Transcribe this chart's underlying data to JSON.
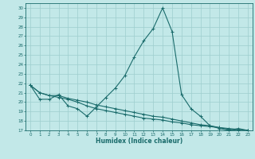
{
  "title": "",
  "xlabel": "Humidex (Indice chaleur)",
  "bg_color": "#c2e8e8",
  "line_color": "#1a6b6b",
  "grid_color": "#9ecece",
  "xlim": [
    -0.5,
    23.5
  ],
  "ylim": [
    17,
    30.5
  ],
  "xticks": [
    0,
    1,
    2,
    3,
    4,
    5,
    6,
    7,
    8,
    9,
    10,
    11,
    12,
    13,
    14,
    15,
    16,
    17,
    18,
    19,
    20,
    21,
    22,
    23
  ],
  "yticks": [
    17,
    18,
    19,
    20,
    21,
    22,
    23,
    24,
    25,
    26,
    27,
    28,
    29,
    30
  ],
  "series1_x": [
    0,
    1,
    2,
    3,
    4,
    5,
    6,
    7,
    8,
    9,
    10,
    11,
    12,
    13,
    14,
    15,
    16,
    17,
    18,
    19,
    20,
    21,
    22,
    23
  ],
  "series1_y": [
    21.8,
    20.3,
    20.3,
    20.8,
    19.6,
    19.3,
    18.5,
    19.5,
    20.5,
    21.5,
    22.8,
    24.8,
    26.5,
    27.8,
    30.0,
    27.5,
    20.8,
    19.3,
    18.5,
    17.5,
    17.2,
    17.0,
    17.2,
    17.0
  ],
  "series2_x": [
    0,
    1,
    2,
    3,
    4,
    5,
    6,
    7,
    8,
    9,
    10,
    11,
    12,
    13,
    14,
    15,
    16,
    17,
    18,
    19,
    20,
    21,
    22,
    23
  ],
  "series2_y": [
    21.8,
    21.0,
    20.7,
    20.7,
    20.4,
    20.2,
    20.0,
    19.7,
    19.5,
    19.3,
    19.1,
    18.9,
    18.7,
    18.5,
    18.4,
    18.2,
    18.0,
    17.8,
    17.6,
    17.5,
    17.3,
    17.2,
    17.1,
    17.0
  ],
  "series3_x": [
    0,
    1,
    2,
    3,
    4,
    5,
    6,
    7,
    8,
    9,
    10,
    11,
    12,
    13,
    14,
    15,
    16,
    17,
    18,
    19,
    20,
    21,
    22,
    23
  ],
  "series3_y": [
    21.8,
    21.0,
    20.7,
    20.5,
    20.3,
    20.0,
    19.6,
    19.3,
    19.1,
    18.9,
    18.7,
    18.5,
    18.3,
    18.2,
    18.1,
    17.9,
    17.8,
    17.6,
    17.5,
    17.4,
    17.3,
    17.1,
    17.0,
    17.0
  ]
}
